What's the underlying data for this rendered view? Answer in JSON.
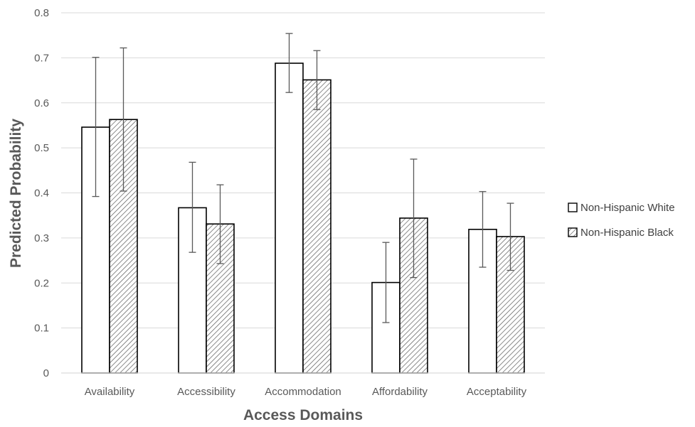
{
  "chart_data": {
    "type": "bar",
    "xlabel": "Access Domains",
    "ylabel": "Predicted Probability",
    "ylim": [
      0,
      0.8
    ],
    "yticks": [
      "0",
      "0.1",
      "0.2",
      "0.3",
      "0.4",
      "0.5",
      "0.6",
      "0.7",
      "0.8"
    ],
    "grid": true,
    "legend_position": "right",
    "categories": [
      "Availability",
      "Accessibility",
      "Accommodation",
      "Affordability",
      "Acceptability"
    ],
    "series": [
      {
        "name": "Non-Hispanic White",
        "fill": "white",
        "values": [
          0.546,
          0.367,
          0.688,
          0.201,
          0.319
        ],
        "error_low": [
          0.392,
          0.268,
          0.623,
          0.112,
          0.235
        ],
        "error_high": [
          0.701,
          0.468,
          0.754,
          0.29,
          0.403
        ]
      },
      {
        "name": "Non-Hispanic Black",
        "fill": "hatched",
        "values": [
          0.563,
          0.331,
          0.651,
          0.344,
          0.303
        ],
        "error_low": [
          0.404,
          0.243,
          0.585,
          0.212,
          0.228
        ],
        "error_high": [
          0.722,
          0.418,
          0.716,
          0.475,
          0.377
        ]
      }
    ],
    "colors": {
      "gridline": "#d9d9d9",
      "bar_stroke": "#000000",
      "hatch": "#595959",
      "text": "#595959"
    }
  }
}
